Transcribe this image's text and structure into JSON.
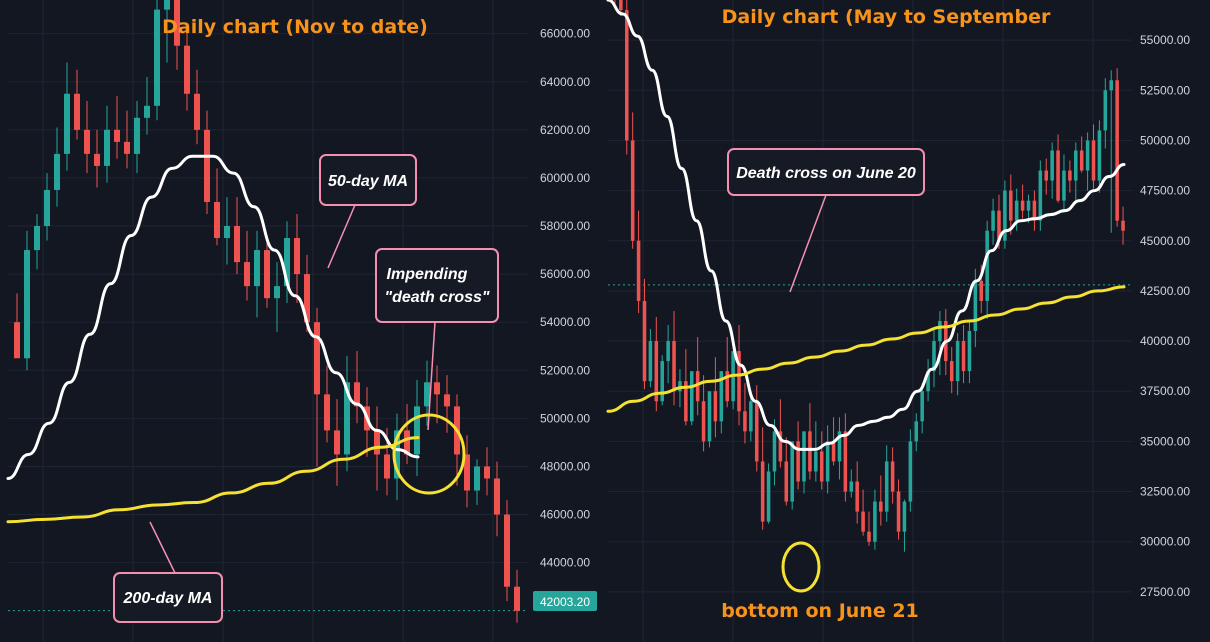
{
  "colors": {
    "background": "#131722",
    "grid": "#1f2433",
    "up": "#26a69a",
    "down": "#ef5350",
    "ma50": "#ffffff",
    "ma200": "#f5e132",
    "title": "#f7931a",
    "callout_border": "#f48fb1",
    "callout_fill": "#161a24",
    "price_line": "#26a69a"
  },
  "chart_data": [
    {
      "type": "candlestick",
      "title": "Daily chart (Nov to date)",
      "y_ticks": [
        "66000.00",
        "64000.00",
        "62000.00",
        "60000.00",
        "58000.00",
        "56000.00",
        "54000.00",
        "52000.00",
        "50000.00",
        "48000.00",
        "46000.00",
        "44000.00"
      ],
      "ylim": [
        40700,
        67400
      ],
      "current_price": "42003.20",
      "current_price_value": 42003.2,
      "series": [
        {
          "name": "50-day MA",
          "type": "line",
          "x": [
            0,
            2,
            4,
            6,
            8,
            10,
            12,
            14,
            16,
            18,
            20,
            22,
            24,
            26,
            28,
            30,
            32,
            34,
            36,
            38,
            40
          ],
          "values": [
            47500,
            48500,
            49800,
            51500,
            53500,
            55600,
            57600,
            59200,
            60400,
            60900,
            60900,
            60200,
            58800,
            57000,
            55100,
            53400,
            51900,
            50600,
            49500,
            48700,
            48400
          ]
        },
        {
          "name": "200-day MA",
          "type": "line",
          "x": [
            0,
            4,
            8,
            12,
            16,
            20,
            24,
            28,
            32,
            36,
            40,
            44
          ],
          "values": [
            45700,
            45800,
            45900,
            46200,
            46400,
            46500,
            46900,
            47300,
            47800,
            48300,
            48800,
            49200
          ]
        }
      ],
      "candles": {
        "o": [
          54000,
          52500,
          57000,
          58000,
          59500,
          61000,
          63500,
          62000,
          61000,
          60500,
          62000,
          61500,
          61000,
          62500,
          63000,
          67000,
          68000,
          65500,
          63500,
          62000,
          59000,
          57500,
          58000,
          56500,
          55500,
          57000,
          55000,
          55500,
          57500,
          56000,
          54000,
          51000,
          49500,
          48500,
          51500,
          50500,
          49500,
          48500,
          47500,
          49500,
          48500,
          50500,
          51500,
          51000,
          50500,
          48500,
          47000,
          48000,
          47500,
          46000,
          43000
        ],
        "h": [
          55200,
          57800,
          58500,
          60200,
          62100,
          64800,
          64500,
          63200,
          62000,
          63000,
          63400,
          62800,
          63200,
          64200,
          68000,
          68500,
          68800,
          66200,
          64500,
          62800,
          60400,
          59200,
          59200,
          57800,
          57800,
          57600,
          56500,
          58200,
          58500,
          56800,
          54600,
          52200,
          50800,
          52600,
          52800,
          51300,
          50500,
          49600,
          50200,
          50600,
          51600,
          52400,
          52200,
          51800,
          51000,
          49300,
          48300,
          48800,
          48200,
          46600,
          43700
        ],
        "l": [
          53200,
          52000,
          56200,
          57400,
          58800,
          60300,
          61600,
          60200,
          59600,
          59800,
          60800,
          60400,
          60200,
          61800,
          62400,
          64800,
          64500,
          62800,
          61400,
          58500,
          57200,
          56400,
          56000,
          54900,
          54200,
          54600,
          53600,
          54800,
          54800,
          53600,
          48000,
          49000,
          47200,
          47800,
          49800,
          48400,
          47000,
          46800,
          46600,
          48100,
          47600,
          49700,
          49800,
          49400,
          47200,
          46300,
          46400,
          46800,
          45100,
          42400,
          41500
        ],
        "c": [
          52500,
          57000,
          58000,
          59500,
          61000,
          63500,
          62000,
          61000,
          60500,
          62000,
          61500,
          61000,
          62500,
          63000,
          67000,
          68000,
          65500,
          63500,
          62000,
          59000,
          57500,
          58000,
          56500,
          55500,
          57000,
          55000,
          55500,
          57500,
          56000,
          54000,
          51000,
          49500,
          48500,
          51500,
          50500,
          49500,
          48500,
          47500,
          49500,
          48500,
          50500,
          51500,
          51000,
          50500,
          48500,
          47000,
          48000,
          47500,
          46000,
          43000,
          42000
        ]
      }
    },
    {
      "type": "candlestick",
      "title": "Daily chart (May to September",
      "y_ticks": [
        "55000.00",
        "52500.00",
        "50000.00",
        "47500.00",
        "45000.00",
        "42500.00",
        "40000.00",
        "37500.00",
        "35000.00",
        "32500.00",
        "30000.00",
        "27500.00"
      ],
      "ylim": [
        25000,
        57000
      ],
      "current_price_value": 42800,
      "series": [
        {
          "name": "50-day MA",
          "type": "line",
          "x": [
            0,
            2,
            4,
            6,
            8,
            10,
            12,
            14,
            16,
            18,
            20,
            22,
            24,
            26,
            28,
            30,
            32,
            34,
            36,
            38,
            40,
            42,
            44,
            46,
            48,
            50,
            52,
            54,
            56,
            58,
            60,
            62,
            64,
            66,
            68,
            70
          ],
          "values": [
            57000,
            56300,
            55200,
            53500,
            51200,
            48600,
            46000,
            43500,
            41000,
            38800,
            37000,
            35800,
            35000,
            34600,
            34600,
            34900,
            35300,
            35800,
            36000,
            36200,
            36600,
            37500,
            38600,
            40000,
            41500,
            43000,
            44500,
            45500,
            46000,
            46100,
            46300,
            46500,
            47000,
            47500,
            48200,
            48800
          ]
        },
        {
          "name": "200-day MA",
          "type": "line",
          "x": [
            0,
            4,
            8,
            12,
            16,
            20,
            24,
            28,
            32,
            36,
            40,
            44,
            48,
            52,
            56,
            60,
            64,
            68,
            72,
            76,
            80
          ],
          "values": [
            36500,
            37000,
            37400,
            37700,
            38000,
            38300,
            38600,
            38900,
            39200,
            39500,
            39800,
            40100,
            40400,
            40700,
            41000,
            41300,
            41600,
            41900,
            42200,
            42500,
            42700
          ]
        }
      ],
      "candles": {
        "o": [
          58000,
          57500,
          56500,
          50000,
          45000,
          42000,
          38000,
          40000,
          37000,
          39000,
          40000,
          37500,
          38000,
          36000,
          38500,
          37000,
          35000,
          37500,
          36000,
          38500,
          37000,
          39500,
          36500,
          35500,
          37000,
          34000,
          31000,
          33500,
          35500,
          34000,
          32000,
          35000,
          33000,
          35500,
          33500,
          34500,
          33000,
          35000,
          34000,
          35500,
          32500,
          33000,
          31500,
          30500,
          30000,
          32000,
          31500,
          34000,
          32500,
          30500,
          32000,
          35000,
          36000,
          37500,
          38500,
          40000,
          41000,
          39000,
          38000,
          40000,
          38500,
          40500,
          43000,
          42000,
          45500,
          46500,
          45000,
          47500,
          46000,
          47000,
          46500,
          47000,
          46000,
          48500,
          48000,
          49500,
          47000,
          48500,
          48000,
          49500,
          48500,
          50000,
          48000,
          50500,
          52500,
          53000,
          46000
        ],
        "h": [
          58500,
          58200,
          57200,
          51400,
          46500,
          43100,
          40600,
          41200,
          39300,
          40800,
          41500,
          38600,
          39600,
          38200,
          40200,
          38300,
          37300,
          39200,
          37800,
          40200,
          39200,
          40800,
          37900,
          37400,
          37800,
          35700,
          33900,
          36100,
          37100,
          35200,
          34700,
          36000,
          35500,
          36900,
          36000,
          35500,
          35800,
          36200,
          36200,
          36400,
          33600,
          34000,
          32600,
          31500,
          32600,
          33300,
          34800,
          34700,
          33100,
          32100,
          35600,
          36400,
          37900,
          39100,
          40600,
          41500,
          41600,
          39700,
          40400,
          40800,
          41000,
          43600,
          43800,
          46000,
          47100,
          47300,
          48000,
          48300,
          47600,
          47800,
          47300,
          47500,
          49000,
          49100,
          49900,
          50300,
          49300,
          49000,
          49900,
          50200,
          50400,
          50800,
          51000,
          53100,
          53500,
          53600,
          46700
        ],
        "l": [
          56800,
          56200,
          49300,
          44600,
          41400,
          37600,
          37700,
          36500,
          36800,
          37900,
          36800,
          36700,
          35800,
          35800,
          36300,
          34500,
          34700,
          35200,
          35400,
          36700,
          36600,
          35800,
          34900,
          35000,
          33500,
          30600,
          30900,
          32800,
          33700,
          31800,
          31600,
          32600,
          32400,
          33100,
          33000,
          32600,
          32400,
          33800,
          33100,
          32000,
          32200,
          30900,
          30300,
          29800,
          29600,
          30800,
          31000,
          31900,
          30100,
          29500,
          31500,
          34500,
          35400,
          37000,
          37700,
          38300,
          38300,
          37400,
          37300,
          37900,
          37900,
          39700,
          41400,
          41100,
          44800,
          44600,
          44600,
          45300,
          45500,
          46100,
          45900,
          45500,
          45500,
          47300,
          47100,
          46900,
          46400,
          47400,
          47000,
          48400,
          47500,
          47600,
          47400,
          49600,
          45400,
          45700,
          44800
        ],
        "c": [
          57500,
          56500,
          50000,
          45000,
          42000,
          38000,
          40000,
          37000,
          39000,
          40000,
          37500,
          38000,
          36000,
          38500,
          37000,
          35000,
          37500,
          36000,
          38500,
          37000,
          39500,
          36500,
          35500,
          37000,
          34000,
          31000,
          33500,
          35500,
          34000,
          32000,
          35000,
          33000,
          35500,
          33500,
          34500,
          33000,
          35000,
          34000,
          35500,
          32500,
          33000,
          31500,
          30500,
          30000,
          32000,
          31500,
          34000,
          32500,
          30500,
          32000,
          35000,
          36000,
          37500,
          38500,
          40000,
          41000,
          39000,
          38000,
          40000,
          38500,
          40500,
          43000,
          42000,
          45500,
          46500,
          45000,
          47500,
          46000,
          47000,
          46500,
          47000,
          46000,
          48500,
          48000,
          49500,
          47000,
          48500,
          48000,
          49500,
          48500,
          50000,
          48000,
          50500,
          52500,
          53000,
          46000,
          45500
        ]
      }
    }
  ],
  "annotations": {
    "left_ma50": "50-day MA",
    "left_cross_line1": "Impending",
    "left_cross_line2": "\"death cross\"",
    "left_ma200": "200-day MA",
    "right_cross": "Death cross on June 20",
    "right_bottom": "bottom on June 21"
  }
}
